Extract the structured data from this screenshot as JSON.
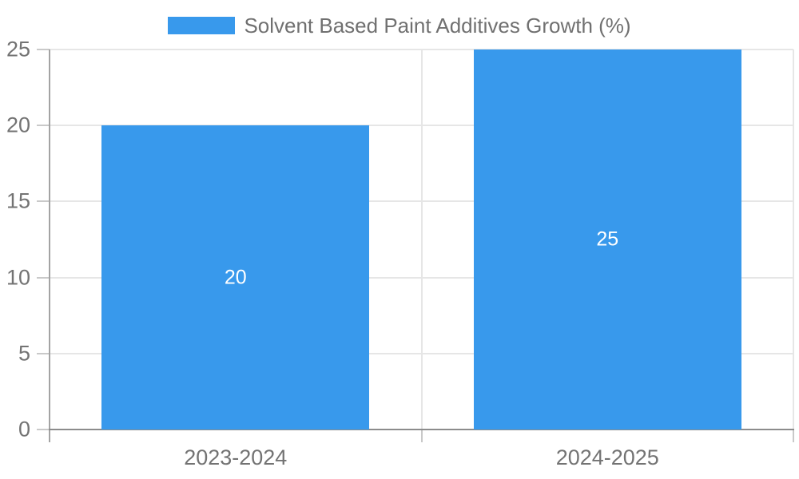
{
  "chart_data": {
    "type": "bar",
    "categories": [
      "2023-2024",
      "2024-2025"
    ],
    "series": [
      {
        "name": "Solvent Based Paint Additives Growth (%)",
        "values": [
          20,
          25
        ]
      }
    ],
    "ylim": [
      0,
      25
    ],
    "yticks": [
      0,
      5,
      10,
      15,
      20,
      25
    ],
    "xlabel": "",
    "ylabel": "",
    "grid": true,
    "legend_position": "top",
    "colors": {
      "bar": "#3899ec",
      "bar_label": "#ffffff"
    }
  }
}
